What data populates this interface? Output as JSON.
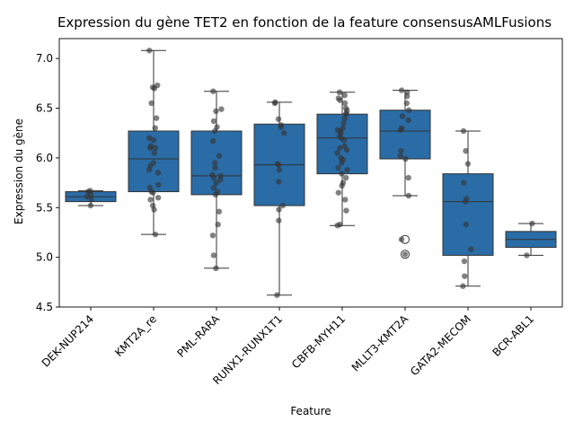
{
  "chart_data": {
    "type": "box",
    "title": "Expression du gène TET2 en fonction de la feature consensusAMLFusions",
    "xlabel": "Feature",
    "ylabel": "Expression du gène",
    "ylim": [
      4.5,
      7.2
    ],
    "yticks": [
      "4.5",
      "5.0",
      "5.5",
      "6.0",
      "6.5",
      "7.0"
    ],
    "grid": false,
    "box_color": "#2a6ca6",
    "point_color": "#333333",
    "categories": [
      "DEK-NUP214",
      "KMT2A_re",
      "PML-RARA",
      "RUNX1-RUNX1T1",
      "CBFB-MYH11",
      "MLLT3-KMT2A",
      "GATA2-MECOM",
      "BCR-ABL1"
    ],
    "boxes": [
      {
        "min": 5.52,
        "q1": 5.56,
        "median": 5.61,
        "q3": 5.66,
        "max": 5.67,
        "outliers": []
      },
      {
        "min": 5.23,
        "q1": 5.66,
        "median": 5.99,
        "q3": 6.27,
        "max": 7.08,
        "outliers": []
      },
      {
        "min": 4.89,
        "q1": 5.63,
        "median": 5.82,
        "q3": 6.27,
        "max": 6.67,
        "outliers": []
      },
      {
        "min": 4.62,
        "q1": 5.52,
        "median": 5.93,
        "q3": 6.34,
        "max": 6.56,
        "outliers": []
      },
      {
        "min": 5.32,
        "q1": 5.84,
        "median": 6.2,
        "q3": 6.44,
        "max": 6.66,
        "outliers": []
      },
      {
        "min": 5.62,
        "q1": 5.99,
        "median": 6.27,
        "q3": 6.48,
        "max": 6.68,
        "outliers": [
          5.18,
          5.03
        ]
      },
      {
        "min": 4.71,
        "q1": 5.02,
        "median": 5.56,
        "q3": 5.84,
        "max": 6.27,
        "outliers": []
      },
      {
        "min": 5.02,
        "q1": 5.1,
        "median": 5.18,
        "q3": 5.26,
        "max": 5.34,
        "outliers": []
      }
    ],
    "points": [
      [
        5.52,
        5.58,
        5.61,
        5.66,
        5.67,
        5.63
      ],
      [
        7.08,
        6.73,
        6.7,
        6.71,
        6.55,
        6.4,
        6.3,
        6.2,
        6.18,
        6.12,
        6.1,
        6.1,
        6.05,
        5.95,
        5.92,
        5.88,
        5.85,
        5.73,
        5.7,
        5.65,
        5.6,
        5.58,
        5.52,
        5.48,
        5.23,
        5.66
      ],
      [
        6.67,
        6.49,
        6.47,
        6.37,
        6.31,
        6.27,
        6.17,
        6.02,
        5.95,
        5.9,
        5.83,
        5.82,
        5.8,
        5.78,
        5.75,
        5.7,
        5.66,
        5.63,
        5.46,
        5.33,
        5.22,
        5.02,
        4.89
      ],
      [
        6.56,
        6.55,
        6.39,
        6.33,
        6.31,
        6.25,
        5.94,
        5.93,
        5.88,
        5.76,
        5.52,
        5.48,
        5.37,
        4.62
      ],
      [
        6.66,
        6.63,
        6.6,
        6.58,
        6.55,
        6.5,
        6.48,
        6.45,
        6.44,
        6.4,
        6.35,
        6.3,
        6.28,
        6.27,
        6.25,
        6.22,
        6.2,
        6.18,
        6.12,
        6.1,
        6.08,
        6.05,
        6.0,
        5.98,
        5.95,
        5.9,
        5.88,
        5.84,
        5.8,
        5.75,
        5.72,
        5.65,
        5.58,
        5.47,
        5.33,
        5.32
      ],
      [
        6.68,
        6.66,
        6.62,
        6.55,
        6.48,
        6.42,
        6.38,
        6.3,
        6.28,
        6.07,
        6.02,
        5.99,
        5.8,
        5.62,
        5.18,
        5.03
      ],
      [
        6.27,
        6.07,
        5.94,
        5.75,
        5.59,
        5.56,
        5.33,
        5.08,
        4.96,
        4.81,
        4.71
      ],
      [
        5.34,
        5.02
      ]
    ]
  }
}
